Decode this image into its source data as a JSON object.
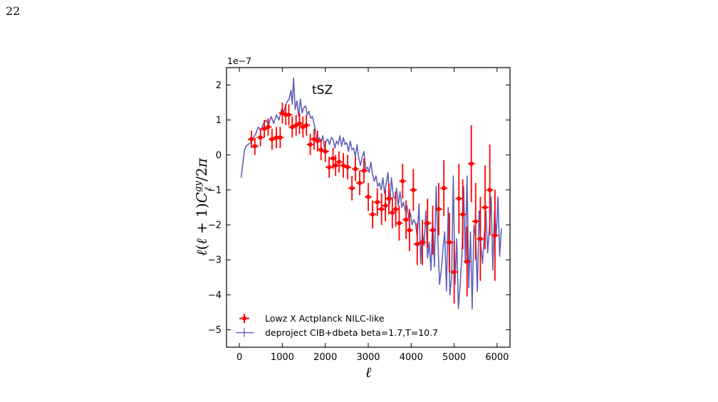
{
  "page": {
    "number": "22"
  },
  "chart_data": {
    "type": "line",
    "xlabel": "ℓ",
    "ylabel": "ℓ(ℓ + 1)C_ℓ^{gy}/2π",
    "y_offset_label": "1e−7",
    "annotation": "tSZ",
    "xlim": [
      -300,
      6300
    ],
    "ylim": [
      -5.5,
      2.5
    ],
    "xticks": [
      0,
      1000,
      2000,
      3000,
      4000,
      5000,
      6000
    ],
    "yticks": [
      -5,
      -4,
      -3,
      -2,
      -1,
      0,
      1,
      2
    ],
    "legend_position": "lower-left",
    "colors": {
      "points": "#ff0000",
      "line": "#3a3aa8"
    },
    "series": [
      {
        "name": "Lowz X Actplanck NILC-like",
        "kind": "errorbar",
        "x": [
          280,
          360,
          490,
          580,
          670,
          760,
          860,
          950,
          1000,
          1080,
          1150,
          1230,
          1320,
          1400,
          1480,
          1560,
          1650,
          1740,
          1820,
          1900,
          2000,
          2090,
          2180,
          2240,
          2320,
          2420,
          2520,
          2620,
          2700,
          2800,
          2900,
          3000,
          3100,
          3210,
          3310,
          3400,
          3480,
          3560,
          3640,
          3720,
          3800,
          3880,
          3960,
          4050,
          4140,
          4260,
          4380,
          4500,
          4640,
          4760,
          4890,
          5000,
          5110,
          5200,
          5300,
          5400,
          5500,
          5610,
          5720,
          5830,
          5950
        ],
        "y": [
          0.45,
          0.25,
          0.5,
          0.75,
          0.8,
          0.45,
          0.5,
          0.5,
          1.2,
          1.15,
          1.15,
          0.8,
          0.85,
          0.9,
          0.8,
          0.85,
          0.3,
          0.45,
          0.4,
          0.15,
          0.1,
          -0.35,
          -0.1,
          -0.3,
          -0.2,
          -0.3,
          -0.35,
          -0.95,
          -0.4,
          -0.8,
          -0.45,
          -1.2,
          -1.7,
          -1.35,
          -1.55,
          -1.45,
          -1.25,
          -1.65,
          -1.55,
          -1.95,
          -0.75,
          -1.85,
          -2.15,
          -1.0,
          -2.55,
          -2.5,
          -1.95,
          -2.15,
          -1.55,
          -0.95,
          -2.5,
          -3.35,
          -1.25,
          -1.7,
          -3.05,
          -0.25,
          -1.9,
          -2.4,
          -1.5,
          -1.0,
          -2.3
        ],
        "yerr": [
          0.25,
          0.25,
          0.25,
          0.25,
          0.25,
          0.3,
          0.3,
          0.3,
          0.3,
          0.3,
          0.3,
          0.3,
          0.3,
          0.3,
          0.3,
          0.3,
          0.3,
          0.3,
          0.3,
          0.3,
          0.3,
          0.3,
          0.3,
          0.3,
          0.3,
          0.35,
          0.35,
          0.35,
          0.35,
          0.35,
          0.35,
          0.4,
          0.4,
          0.4,
          0.45,
          0.45,
          0.45,
          0.45,
          0.5,
          0.5,
          0.5,
          0.55,
          0.6,
          0.6,
          0.6,
          0.65,
          0.7,
          0.7,
          0.75,
          0.8,
          0.85,
          0.9,
          1.0,
          1.0,
          1.0,
          1.1,
          1.1,
          1.2,
          1.2,
          1.3,
          1.3
        ]
      },
      {
        "name": "deproject CIB+dbeta beta=1.7,T=10.7",
        "kind": "line",
        "x": [
          40,
          80,
          120,
          160,
          200,
          260,
          320,
          380,
          440,
          500,
          560,
          620,
          680,
          740,
          800,
          860,
          920,
          980,
          1040,
          1100,
          1160,
          1200,
          1230,
          1260,
          1300,
          1340,
          1380,
          1420,
          1460,
          1500,
          1540,
          1580,
          1620,
          1660,
          1700,
          1740,
          1780,
          1820,
          1860,
          1900,
          1940,
          1980,
          2020,
          2060,
          2100,
          2140,
          2180,
          2220,
          2260,
          2300,
          2340,
          2380,
          2420,
          2460,
          2500,
          2540,
          2580,
          2620,
          2660,
          2700,
          2740,
          2780,
          2820,
          2860,
          2900,
          2940,
          2980,
          3020,
          3060,
          3100,
          3140,
          3180,
          3220,
          3260,
          3300,
          3340,
          3380,
          3420,
          3460,
          3500,
          3540,
          3580,
          3620,
          3660,
          3700,
          3740,
          3780,
          3820,
          3860,
          3900,
          3940,
          3980,
          4020,
          4060,
          4100,
          4140,
          4180,
          4220,
          4260,
          4300,
          4340,
          4380,
          4420,
          4460,
          4500,
          4540,
          4580,
          4620,
          4660,
          4700,
          4740,
          4780,
          4820,
          4860,
          4900,
          4940,
          4980,
          5020,
          5060,
          5100,
          5140,
          5180,
          5220,
          5260,
          5300,
          5340,
          5380,
          5420,
          5460,
          5500,
          5540,
          5580,
          5620,
          5660,
          5700,
          5740,
          5780,
          5820,
          5860,
          5900,
          5940,
          5980,
          6020,
          6060,
          6100
        ],
        "y": [
          -0.65,
          -0.25,
          0.15,
          0.25,
          0.3,
          0.35,
          0.5,
          0.6,
          0.8,
          0.7,
          0.9,
          1.0,
          0.85,
          1.1,
          0.9,
          1.15,
          1.0,
          1.3,
          1.25,
          1.5,
          1.6,
          1.85,
          1.45,
          2.2,
          1.3,
          1.55,
          1.1,
          1.6,
          1.2,
          1.35,
          1.4,
          1.15,
          1.25,
          1.05,
          1.1,
          0.9,
          0.6,
          0.4,
          0.5,
          0.35,
          0.55,
          0.2,
          0.4,
          0.45,
          0.3,
          0.5,
          0.45,
          0.2,
          0.4,
          0.3,
          0.55,
          0.25,
          0.5,
          0.3,
          0.35,
          0.1,
          0.4,
          0.15,
          0.2,
          -0.05,
          0.3,
          -0.1,
          -0.3,
          -0.05,
          0.1,
          -0.4,
          -0.35,
          -0.5,
          -0.2,
          -0.55,
          -0.75,
          -0.6,
          -0.9,
          -0.8,
          -1.0,
          -0.65,
          -1.1,
          -0.8,
          -0.5,
          -1.4,
          -0.65,
          -1.15,
          -1.25,
          -0.95,
          -1.45,
          -1.05,
          -1.5,
          -1.35,
          -1.6,
          -1.45,
          -1.8,
          -1.65,
          -2.0,
          -1.85,
          -1.95,
          -2.35,
          -1.4,
          -3.1,
          -2.2,
          -2.6,
          -1.6,
          -2.95,
          -2.5,
          -3.3,
          -1.8,
          -3.2,
          -0.9,
          -2.4,
          -3.7,
          -3.3,
          -2.7,
          -2.2,
          -3.9,
          -1.5,
          -4.0,
          -3.5,
          -0.6,
          -3.7,
          -2.4,
          -4.4,
          -3.7,
          -2.9,
          -0.9,
          -3.1,
          -0.6,
          -3.8,
          -2.2,
          -4.4,
          -2.0,
          -2.4,
          -3.9,
          -1.6,
          -2.6,
          -3.1,
          -2.3,
          -1.6,
          -2.8,
          -2.1,
          -1.2,
          -3.3,
          -1.6,
          -2.3,
          -1.2,
          -2.9,
          -2.1
        ]
      }
    ]
  }
}
